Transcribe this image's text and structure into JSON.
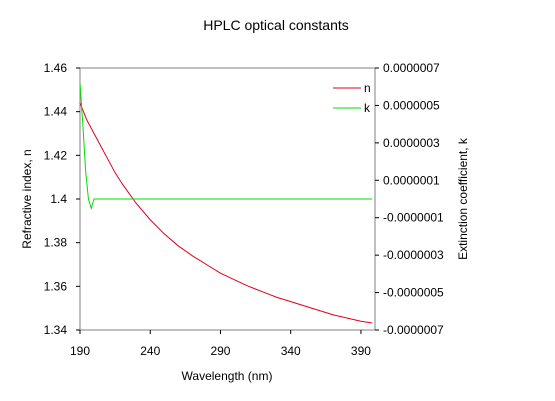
{
  "chart_data": {
    "type": "line",
    "title": "HPLC optical constants",
    "xlabel": "Wavelength (nm)",
    "ylabel_left": "Refractive index, n",
    "ylabel_right": "Extinction coefficient, k",
    "xlim": [
      190,
      400
    ],
    "ylim_left": [
      1.34,
      1.46
    ],
    "ylim_right": [
      -7e-07,
      7e-07
    ],
    "x_ticks": [
      "190",
      "240",
      "290",
      "340",
      "390"
    ],
    "x_tick_values": [
      190,
      240,
      290,
      340,
      390
    ],
    "y_left_ticks": [
      "1.46",
      "1.44",
      "1.42",
      "1.4",
      "1.38",
      "1.36",
      "1.34"
    ],
    "y_left_tick_values": [
      1.46,
      1.44,
      1.42,
      1.4,
      1.38,
      1.36,
      1.34
    ],
    "y_right_ticks": [
      "0.0000007",
      "0.0000005",
      "0.0000003",
      "0.0000001",
      "-0.0000001",
      "-0.0000003",
      "-0.0000005",
      "-0.0000007"
    ],
    "y_right_tick_values": [
      7e-07,
      5e-07,
      3e-07,
      1e-07,
      -1e-07,
      -3e-07,
      -5e-07,
      -7e-07
    ],
    "grid": false,
    "legend_position": "top-right",
    "series": [
      {
        "name": "n",
        "axis": "left",
        "color": "#e0001b",
        "x": [
          190,
          195,
          200,
          205,
          210,
          215,
          220,
          230,
          240,
          250,
          260,
          270,
          280,
          290,
          300,
          310,
          320,
          330,
          340,
          350,
          360,
          370,
          380,
          390,
          398
        ],
        "y": [
          1.444,
          1.436,
          1.43,
          1.424,
          1.418,
          1.412,
          1.407,
          1.398,
          1.3905,
          1.384,
          1.3785,
          1.374,
          1.37,
          1.366,
          1.363,
          1.36,
          1.3575,
          1.355,
          1.353,
          1.351,
          1.349,
          1.347,
          1.3455,
          1.344,
          1.3432
        ]
      },
      {
        "name": "k",
        "axis": "right",
        "color": "#00dd00",
        "x": [
          190,
          192,
          194,
          196,
          198,
          200,
          210,
          250,
          300,
          350,
          398
        ],
        "y": [
          6.2e-07,
          4e-07,
          1.5e-07,
          0.0,
          -5e-08,
          -0.0,
          0,
          0,
          0,
          0,
          0
        ]
      }
    ]
  }
}
